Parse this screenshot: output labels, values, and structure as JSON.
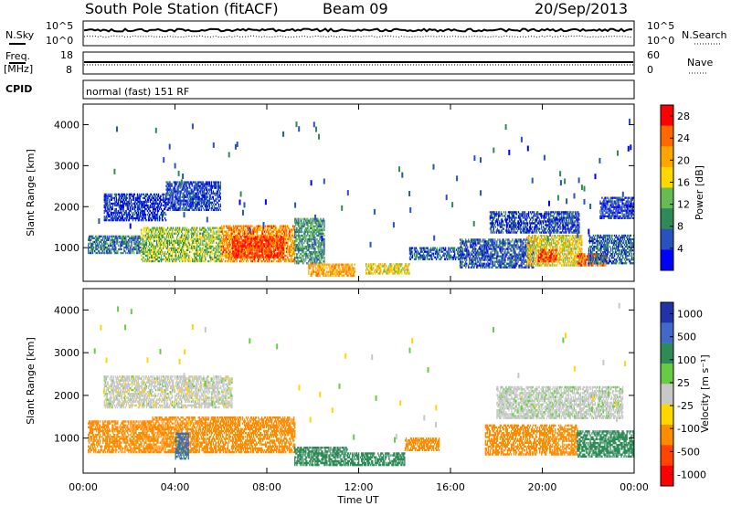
{
  "header": {
    "station": "South Pole Station (fitACF)",
    "beam": "Beam 09",
    "date": "20/Sep/2013"
  },
  "top_panels": {
    "nsky_label": "N.Sky",
    "nsearch_label": "N.Search",
    "noise_tick_top": "10^5",
    "noise_tick_bottom": "10^0",
    "freq_label_1": "Freq.",
    "freq_label_2": "[MHz]",
    "freq_tick_top": "18",
    "freq_tick_bottom": "8",
    "nave_label": "Nave",
    "nave_tick_top": "60",
    "nave_tick_bottom": "0",
    "cpid_label": "CPID",
    "cpid_value": "normal (fast) 151 RF"
  },
  "chart_data": [
    {
      "type": "heatmap",
      "quantity": "Power",
      "ylabel": "Slant Range [km]",
      "ylim": [
        180,
        4500
      ],
      "yticks": [
        "1000",
        "2000",
        "3000",
        "4000"
      ],
      "xlabel": "Time UT",
      "xlim_hours": [
        0,
        24
      ],
      "xticks": [
        "00:00",
        "04:00",
        "08:00",
        "12:00",
        "16:00",
        "20:00",
        "00:00"
      ],
      "colorbar": {
        "label": "Power [dB]",
        "ticks": [
          "4",
          "8",
          "12",
          "16",
          "20",
          "24",
          "28"
        ],
        "range": [
          0,
          30
        ],
        "colors": [
          "#0000ff",
          "#2a52be",
          "#2e8b57",
          "#66bb55",
          "#ffd700",
          "#ffa500",
          "#ff6a00",
          "#ff0000"
        ]
      },
      "regions": [
        {
          "t": [
            0.9,
            3.6
          ],
          "r": [
            1650,
            2300
          ],
          "value": 4
        },
        {
          "t": [
            3.6,
            6.0
          ],
          "r": [
            1900,
            2600
          ],
          "value": 5
        },
        {
          "t": [
            0.2,
            2.5
          ],
          "r": [
            850,
            1300
          ],
          "value": 8
        },
        {
          "t": [
            2.5,
            6.0
          ],
          "r": [
            650,
            1500
          ],
          "value": 14
        },
        {
          "t": [
            6.0,
            9.2
          ],
          "r": [
            650,
            1550
          ],
          "value": 22
        },
        {
          "t": [
            6.5,
            8.7
          ],
          "r": [
            750,
            1250
          ],
          "value": 27
        },
        {
          "t": [
            9.2,
            10.5
          ],
          "r": [
            600,
            1700
          ],
          "value": 10
        },
        {
          "t": [
            9.8,
            11.8
          ],
          "r": [
            300,
            600
          ],
          "value": 21
        },
        {
          "t": [
            12.3,
            14.2
          ],
          "r": [
            350,
            600
          ],
          "value": 17
        },
        {
          "t": [
            14.2,
            16.5
          ],
          "r": [
            700,
            1000
          ],
          "value": 7
        },
        {
          "t": [
            16.4,
            19.6
          ],
          "r": [
            500,
            1200
          ],
          "value": 6
        },
        {
          "t": [
            17.7,
            21.6
          ],
          "r": [
            1350,
            1850
          ],
          "value": 5
        },
        {
          "t": [
            19.3,
            21.7
          ],
          "r": [
            550,
            1300
          ],
          "value": 17
        },
        {
          "t": [
            19.8,
            20.6
          ],
          "r": [
            650,
            950
          ],
          "value": 26
        },
        {
          "t": [
            21.5,
            22.8
          ],
          "r": [
            550,
            850
          ],
          "value": 25
        },
        {
          "t": [
            22.0,
            24.0
          ],
          "r": [
            600,
            1300
          ],
          "value": 7
        },
        {
          "t": [
            22.5,
            24.0
          ],
          "r": [
            1700,
            2200
          ],
          "value": 4
        }
      ]
    },
    {
      "type": "heatmap",
      "quantity": "Velocity",
      "ylabel": "Slant Range [km]",
      "ylim": [
        180,
        4500
      ],
      "yticks": [
        "1000",
        "2000",
        "3000",
        "4000"
      ],
      "xlabel": "Time UT",
      "xlim_hours": [
        0,
        24
      ],
      "xticks": [
        "00:00",
        "04:00",
        "08:00",
        "12:00",
        "16:00",
        "20:00",
        "00:00"
      ],
      "colorbar": {
        "label": "Velocity [m s⁻¹]",
        "ticks": [
          "1000",
          "500",
          "100",
          "25",
          "-25",
          "-100",
          "-500",
          "-1000"
        ],
        "colors": [
          "#2233aa",
          "#4169c9",
          "#2e8b57",
          "#66cc44",
          "#c8c8c8",
          "#ffd700",
          "#ff8c00",
          "#ff4500",
          "#ff0000"
        ]
      },
      "regions": [
        {
          "t": [
            0.9,
            6.5
          ],
          "r": [
            1700,
            2450
          ],
          "value": 0
        },
        {
          "t": [
            0.2,
            3.0
          ],
          "r": [
            650,
            1400
          ],
          "value": -300
        },
        {
          "t": [
            3.0,
            9.2
          ],
          "r": [
            650,
            1500
          ],
          "value": -250
        },
        {
          "t": [
            4.0,
            4.6
          ],
          "r": [
            500,
            1100
          ],
          "value": 600
        },
        {
          "t": [
            9.2,
            11.5
          ],
          "r": [
            350,
            800
          ],
          "value": 300
        },
        {
          "t": [
            11.5,
            14.0
          ],
          "r": [
            350,
            650
          ],
          "value": 250
        },
        {
          "t": [
            14.0,
            15.5
          ],
          "r": [
            700,
            1000
          ],
          "value": -200
        },
        {
          "t": [
            17.5,
            21.5
          ],
          "r": [
            600,
            1300
          ],
          "value": -300
        },
        {
          "t": [
            18.0,
            23.5
          ],
          "r": [
            1450,
            2200
          ],
          "value": 5
        },
        {
          "t": [
            21.5,
            24.0
          ],
          "r": [
            550,
            1150
          ],
          "value": 200
        }
      ]
    }
  ]
}
